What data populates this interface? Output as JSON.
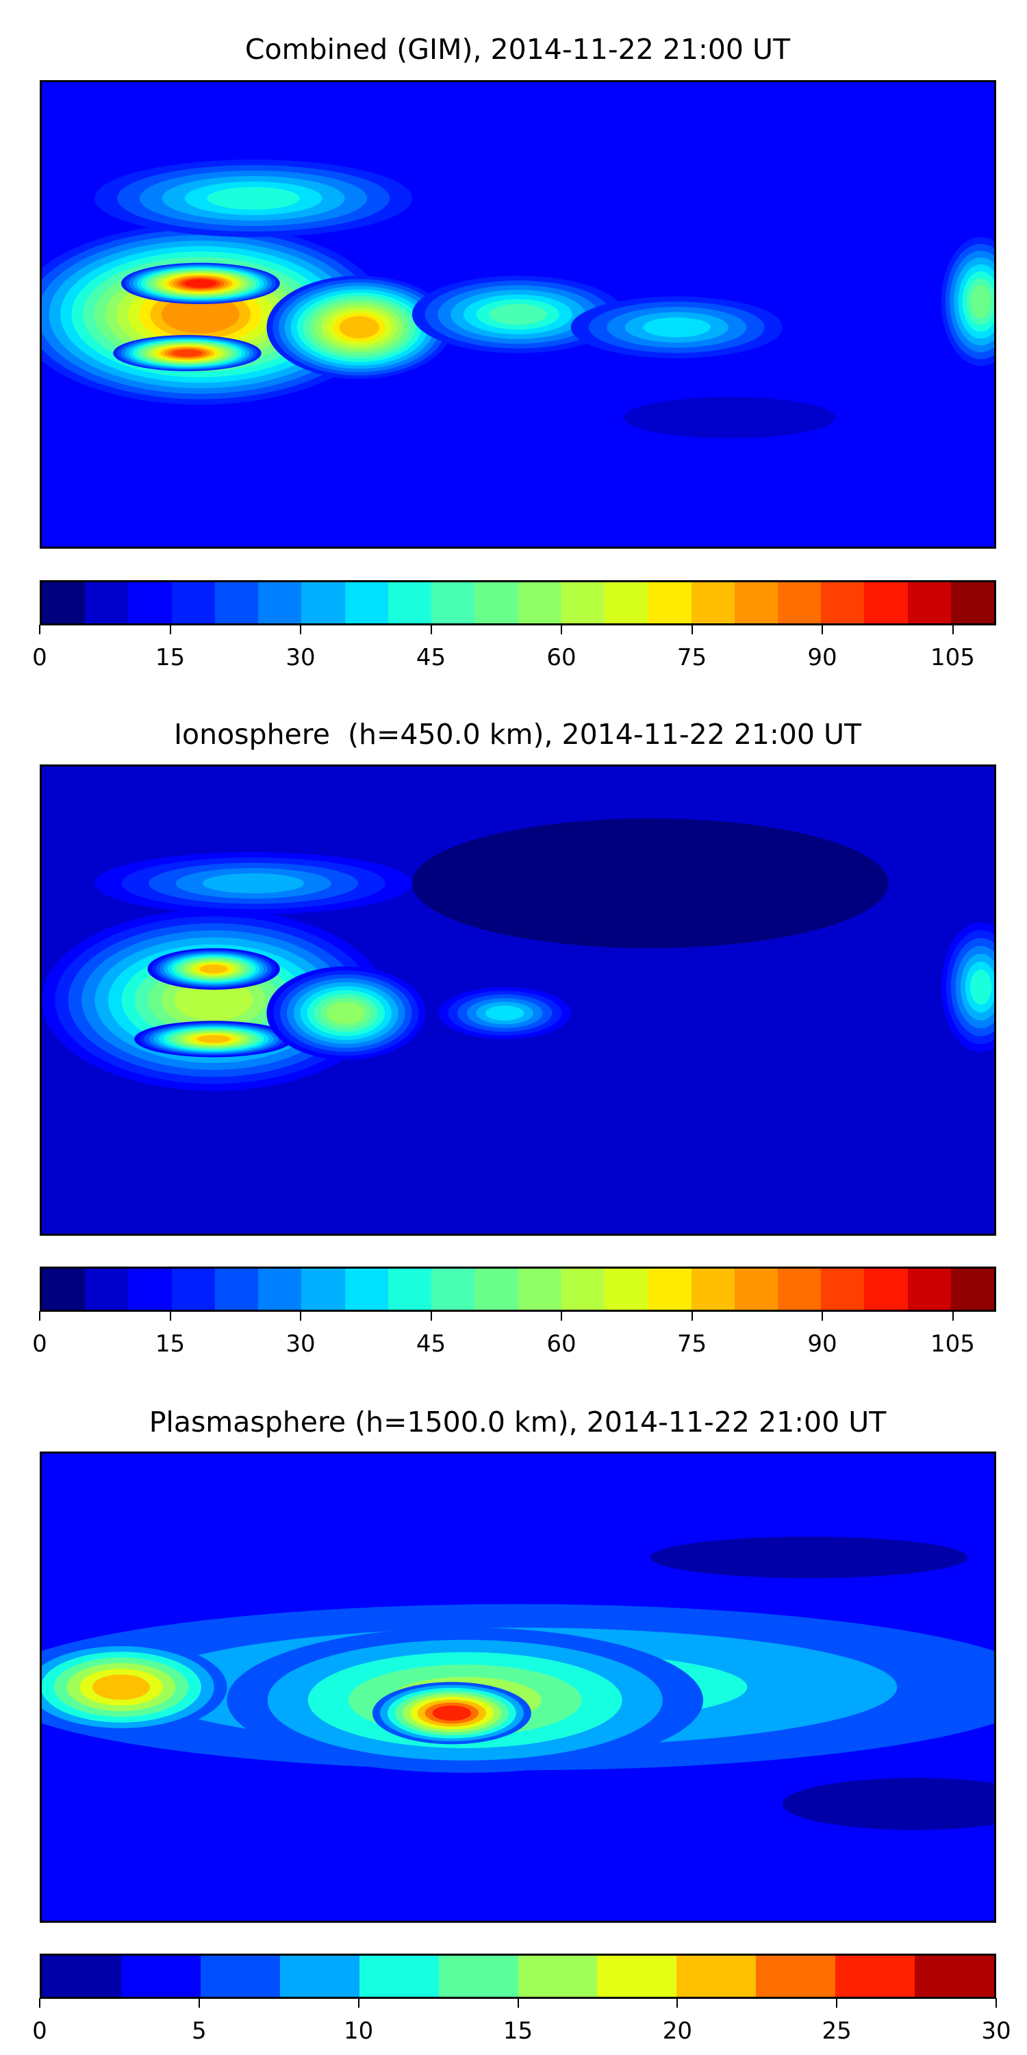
{
  "chart_data": [
    {
      "type": "heatmap",
      "title": "Combined (GIM), 2014-11-22 21:00 UT",
      "xlim": [
        -180,
        180
      ],
      "ylim": [
        -90,
        90
      ],
      "background_value": 12,
      "features": [
        {
          "lon": -120,
          "lat": 0,
          "rx": 70,
          "ry": 35,
          "value": 80
        },
        {
          "lon": -120,
          "lat": 12,
          "rx": 30,
          "ry": 8,
          "value": 95
        },
        {
          "lon": -125,
          "lat": -15,
          "rx": 28,
          "ry": 7,
          "value": 92
        },
        {
          "lon": -60,
          "lat": -5,
          "rx": 35,
          "ry": 20,
          "value": 78
        },
        {
          "lon": 0,
          "lat": 0,
          "rx": 40,
          "ry": 15,
          "value": 45
        },
        {
          "lon": 60,
          "lat": -5,
          "rx": 40,
          "ry": 12,
          "value": 38
        },
        {
          "lon": 175,
          "lat": 5,
          "rx": 15,
          "ry": 25,
          "value": 50
        },
        {
          "lon": -100,
          "lat": 45,
          "rx": 60,
          "ry": 15,
          "value": 40
        },
        {
          "lon": 80,
          "lat": -40,
          "rx": 40,
          "ry": 8,
          "value": 5
        }
      ],
      "colorbar": {
        "levels_min": 0,
        "levels_max": 110,
        "step": 5,
        "ticks": [
          "0",
          "15",
          "30",
          "45",
          "60",
          "75",
          "90",
          "105"
        ],
        "colors": [
          "#00007f",
          "#0000cd",
          "#0000ff",
          "#0020ff",
          "#0050ff",
          "#0080ff",
          "#00b0ff",
          "#00e0ff",
          "#1affdc",
          "#48ffb2",
          "#6aff8a",
          "#8fff65",
          "#b5ff40",
          "#d8ff1c",
          "#ffec00",
          "#ffbe00",
          "#ff9600",
          "#ff6e00",
          "#ff4000",
          "#ff1800",
          "#cc0000",
          "#900000"
        ]
      }
    },
    {
      "type": "heatmap",
      "title": "Ionosphere  (h=450.0 km), 2014-11-22 21:00 UT",
      "xlim": [
        -180,
        180
      ],
      "ylim": [
        -90,
        90
      ],
      "background_value": 8,
      "features": [
        {
          "lon": -115,
          "lat": 0,
          "rx": 65,
          "ry": 35,
          "value": 62
        },
        {
          "lon": -115,
          "lat": 12,
          "rx": 25,
          "ry": 8,
          "value": 78
        },
        {
          "lon": -115,
          "lat": -15,
          "rx": 30,
          "ry": 7,
          "value": 75
        },
        {
          "lon": -65,
          "lat": -5,
          "rx": 30,
          "ry": 18,
          "value": 55
        },
        {
          "lon": -5,
          "lat": -5,
          "rx": 25,
          "ry": 10,
          "value": 38
        },
        {
          "lon": 175,
          "lat": 5,
          "rx": 15,
          "ry": 25,
          "value": 40
        },
        {
          "lon": -100,
          "lat": 45,
          "rx": 60,
          "ry": 12,
          "value": 30
        },
        {
          "lon": 50,
          "lat": 45,
          "rx": 90,
          "ry": 25,
          "value": 2
        }
      ],
      "colorbar": {
        "levels_min": 0,
        "levels_max": 110,
        "step": 5,
        "ticks": [
          "0",
          "15",
          "30",
          "45",
          "60",
          "75",
          "90",
          "105"
        ],
        "colors": [
          "#00007f",
          "#0000cd",
          "#0000ff",
          "#0020ff",
          "#0050ff",
          "#0080ff",
          "#00b0ff",
          "#00e0ff",
          "#1affdc",
          "#48ffb2",
          "#6aff8a",
          "#8fff65",
          "#b5ff40",
          "#d8ff1c",
          "#ffec00",
          "#ffbe00",
          "#ff9600",
          "#ff6e00",
          "#ff4000",
          "#ff1800",
          "#cc0000",
          "#900000"
        ]
      }
    },
    {
      "type": "heatmap",
      "title": "Plasmasphere (h=1500.0 km), 2014-11-22 21:00 UT",
      "xlim": [
        -180,
        180
      ],
      "ylim": [
        -90,
        90
      ],
      "background_value": 4,
      "features": [
        {
          "lon": 0,
          "lat": 0,
          "rx": 200,
          "ry": 32,
          "value": 11
        },
        {
          "lon": -20,
          "lat": -5,
          "rx": 90,
          "ry": 28,
          "value": 15
        },
        {
          "lon": -25,
          "lat": -10,
          "rx": 30,
          "ry": 12,
          "value": 27
        },
        {
          "lon": -150,
          "lat": 0,
          "rx": 40,
          "ry": 18,
          "value": 21
        },
        {
          "lon": 110,
          "lat": 50,
          "rx": 60,
          "ry": 8,
          "value": 2
        },
        {
          "lon": 150,
          "lat": -45,
          "rx": 50,
          "ry": 10,
          "value": 2
        }
      ],
      "colorbar": {
        "levels_min": 0,
        "levels_max": 30,
        "step": 2.5,
        "ticks": [
          "0",
          "5",
          "10",
          "15",
          "20",
          "25",
          "30"
        ],
        "colors": [
          "#0000a8",
          "#0000ff",
          "#0050ff",
          "#00a8ff",
          "#16ffe1",
          "#5aff9c",
          "#a0ff57",
          "#e4ff13",
          "#ffc000",
          "#ff6e00",
          "#ff2200",
          "#b00000"
        ]
      }
    }
  ]
}
